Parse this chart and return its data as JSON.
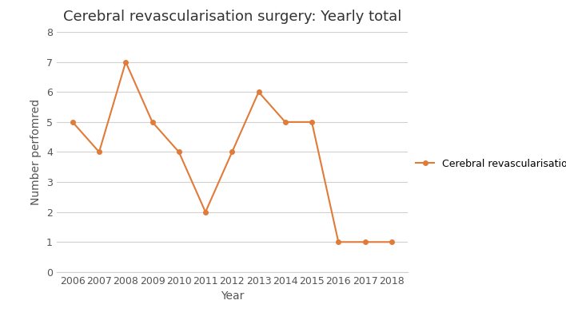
{
  "title": "Cerebral revascularisation surgery: Yearly total",
  "xlabel": "Year",
  "ylabel": "Number perfomred",
  "years": [
    2006,
    2007,
    2008,
    2009,
    2010,
    2011,
    2012,
    2013,
    2014,
    2015,
    2016,
    2017,
    2018
  ],
  "values": [
    5,
    4,
    7,
    5,
    4,
    2,
    4,
    6,
    5,
    5,
    1,
    1,
    1
  ],
  "line_color": "#E07B39",
  "marker": "o",
  "marker_size": 4,
  "line_width": 1.5,
  "ylim": [
    0,
    8
  ],
  "yticks": [
    0,
    1,
    2,
    3,
    4,
    5,
    6,
    7,
    8
  ],
  "legend_label": "Cerebral revascularisation",
  "grid_color": "#d0d0d0",
  "background_color": "#ffffff",
  "title_fontsize": 13,
  "axis_label_fontsize": 10,
  "tick_fontsize": 9,
  "legend_fontsize": 9
}
